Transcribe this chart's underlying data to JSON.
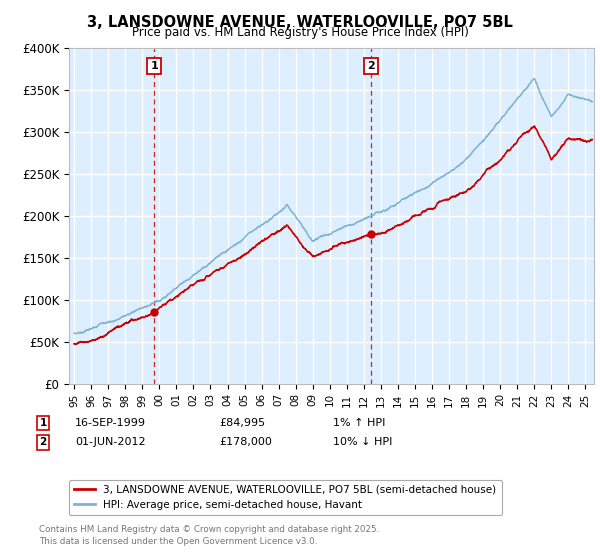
{
  "title": "3, LANSDOWNE AVENUE, WATERLOOVILLE, PO7 5BL",
  "subtitle": "Price paid vs. HM Land Registry's House Price Index (HPI)",
  "ylim": [
    0,
    400000
  ],
  "yticks": [
    0,
    50000,
    100000,
    150000,
    200000,
    250000,
    300000,
    350000,
    400000
  ],
  "ytick_labels": [
    "£0",
    "£50K",
    "£100K",
    "£150K",
    "£200K",
    "£250K",
    "£300K",
    "£350K",
    "£400K"
  ],
  "xlim_start": 1994.7,
  "xlim_end": 2025.5,
  "sale1_x": 1999.71,
  "sale1_y": 84995,
  "sale2_x": 2012.42,
  "sale2_y": 178000,
  "sale1_label": "16-SEP-1999",
  "sale1_price": "£84,995",
  "sale1_hpi": "1% ↑ HPI",
  "sale2_label": "01-JUN-2012",
  "sale2_price": "£178,000",
  "sale2_hpi": "10% ↓ HPI",
  "legend_line1": "3, LANSDOWNE AVENUE, WATERLOOVILLE, PO7 5BL (semi-detached house)",
  "legend_line2": "HPI: Average price, semi-detached house, Havant",
  "footer": "Contains HM Land Registry data © Crown copyright and database right 2025.\nThis data is licensed under the Open Government Licence v3.0.",
  "red_color": "#cc0000",
  "blue_color": "#7fb3d3",
  "bg_color": "#ddeeff",
  "grid_color": "#ffffff",
  "annotation_box_color": "#cc0000"
}
